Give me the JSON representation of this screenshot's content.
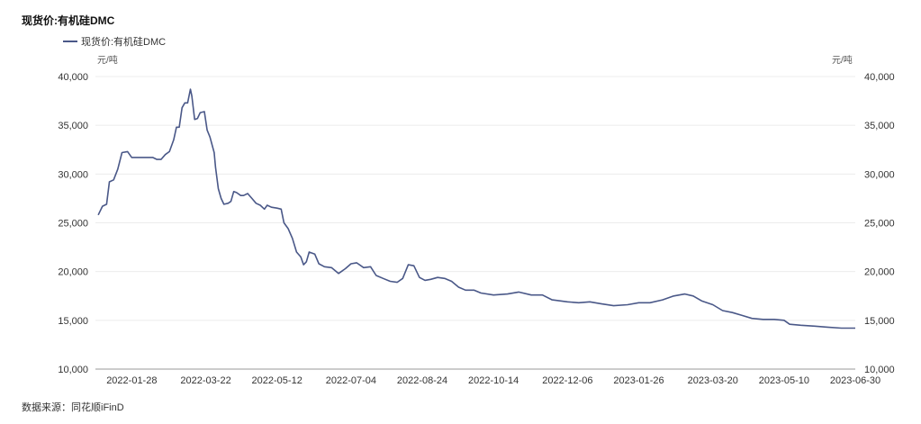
{
  "title": "现货价:有机硅DMC",
  "source": "数据来源：同花顺iFinD",
  "chart_data": {
    "type": "line",
    "title": "现货价:有机硅DMC",
    "ylabel_left": "元/吨",
    "ylabel_right": "元/吨",
    "ylim": [
      10000,
      40000
    ],
    "yticks": [
      "10,000",
      "15,000",
      "20,000",
      "25,000",
      "30,000",
      "35,000",
      "40,000"
    ],
    "xticks": [
      "2022-01-28",
      "2022-03-22",
      "2022-05-12",
      "2022-07-04",
      "2022-08-24",
      "2022-10-14",
      "2022-12-06",
      "2023-01-26",
      "2023-03-20",
      "2023-05-10",
      "2023-06-30"
    ],
    "legend": "top-left",
    "grid": true,
    "color": "#4a5888",
    "series": [
      {
        "name": "现货价:有机硅DMC",
        "points": [
          [
            "2022-01-04",
            25800
          ],
          [
            "2022-01-07",
            26700
          ],
          [
            "2022-01-10",
            26900
          ],
          [
            "2022-01-12",
            29200
          ],
          [
            "2022-01-15",
            29400
          ],
          [
            "2022-01-18",
            30500
          ],
          [
            "2022-01-21",
            32200
          ],
          [
            "2022-01-25",
            32300
          ],
          [
            "2022-01-28",
            31700
          ],
          [
            "2022-02-02",
            31700
          ],
          [
            "2022-02-07",
            31700
          ],
          [
            "2022-02-12",
            31700
          ],
          [
            "2022-02-15",
            31500
          ],
          [
            "2022-02-18",
            31500
          ],
          [
            "2022-02-21",
            32000
          ],
          [
            "2022-02-24",
            32300
          ],
          [
            "2022-02-27",
            33500
          ],
          [
            "2022-03-01",
            34800
          ],
          [
            "2022-03-03",
            34800
          ],
          [
            "2022-03-05",
            36800
          ],
          [
            "2022-03-07",
            37300
          ],
          [
            "2022-03-09",
            37300
          ],
          [
            "2022-03-11",
            38700
          ],
          [
            "2022-03-12",
            38000
          ],
          [
            "2022-03-14",
            35600
          ],
          [
            "2022-03-16",
            35700
          ],
          [
            "2022-03-18",
            36300
          ],
          [
            "2022-03-21",
            36400
          ],
          [
            "2022-03-23",
            34500
          ],
          [
            "2022-03-25",
            33800
          ],
          [
            "2022-03-28",
            32200
          ],
          [
            "2022-03-29",
            30700
          ],
          [
            "2022-03-31",
            28500
          ],
          [
            "2022-04-02",
            27500
          ],
          [
            "2022-04-04",
            26900
          ],
          [
            "2022-04-07",
            27000
          ],
          [
            "2022-04-09",
            27200
          ],
          [
            "2022-04-11",
            28200
          ],
          [
            "2022-04-13",
            28100
          ],
          [
            "2022-04-16",
            27800
          ],
          [
            "2022-04-18",
            27800
          ],
          [
            "2022-04-21",
            28000
          ],
          [
            "2022-04-24",
            27500
          ],
          [
            "2022-04-27",
            27000
          ],
          [
            "2022-04-30",
            26800
          ],
          [
            "2022-05-03",
            26400
          ],
          [
            "2022-05-05",
            26800
          ],
          [
            "2022-05-08",
            26600
          ],
          [
            "2022-05-12",
            26500
          ],
          [
            "2022-05-15",
            26400
          ],
          [
            "2022-05-17",
            25000
          ],
          [
            "2022-05-20",
            24400
          ],
          [
            "2022-05-23",
            23400
          ],
          [
            "2022-05-26",
            22000
          ],
          [
            "2022-05-29",
            21500
          ],
          [
            "2022-05-31",
            20700
          ],
          [
            "2022-06-02",
            21000
          ],
          [
            "2022-06-04",
            22000
          ],
          [
            "2022-06-08",
            21800
          ],
          [
            "2022-06-11",
            20800
          ],
          [
            "2022-06-15",
            20500
          ],
          [
            "2022-06-20",
            20400
          ],
          [
            "2022-06-25",
            19800
          ],
          [
            "2022-06-30",
            20300
          ],
          [
            "2022-07-04",
            20800
          ],
          [
            "2022-07-08",
            20900
          ],
          [
            "2022-07-13",
            20400
          ],
          [
            "2022-07-18",
            20500
          ],
          [
            "2022-07-22",
            19600
          ],
          [
            "2022-07-27",
            19300
          ],
          [
            "2022-08-01",
            19000
          ],
          [
            "2022-08-06",
            18900
          ],
          [
            "2022-08-10",
            19300
          ],
          [
            "2022-08-14",
            20700
          ],
          [
            "2022-08-18",
            20600
          ],
          [
            "2022-08-22",
            19400
          ],
          [
            "2022-08-26",
            19100
          ],
          [
            "2022-08-30",
            19200
          ],
          [
            "2022-09-04",
            19400
          ],
          [
            "2022-09-09",
            19300
          ],
          [
            "2022-09-14",
            19000
          ],
          [
            "2022-09-19",
            18400
          ],
          [
            "2022-09-24",
            18100
          ],
          [
            "2022-09-30",
            18100
          ],
          [
            "2022-10-05",
            17800
          ],
          [
            "2022-10-14",
            17600
          ],
          [
            "2022-10-24",
            17700
          ],
          [
            "2022-11-01",
            17900
          ],
          [
            "2022-11-10",
            17600
          ],
          [
            "2022-11-18",
            17600
          ],
          [
            "2022-11-25",
            17100
          ],
          [
            "2022-12-06",
            16900
          ],
          [
            "2022-12-14",
            16800
          ],
          [
            "2022-12-22",
            16900
          ],
          [
            "2022-12-30",
            16700
          ],
          [
            "2023-01-08",
            16500
          ],
          [
            "2023-01-18",
            16600
          ],
          [
            "2023-01-26",
            16800
          ],
          [
            "2023-02-03",
            16800
          ],
          [
            "2023-02-12",
            17100
          ],
          [
            "2023-02-20",
            17500
          ],
          [
            "2023-02-28",
            17700
          ],
          [
            "2023-03-06",
            17500
          ],
          [
            "2023-03-12",
            17000
          ],
          [
            "2023-03-20",
            16600
          ],
          [
            "2023-03-27",
            16000
          ],
          [
            "2023-04-03",
            15800
          ],
          [
            "2023-04-10",
            15500
          ],
          [
            "2023-04-17",
            15200
          ],
          [
            "2023-04-25",
            15100
          ],
          [
            "2023-05-03",
            15100
          ],
          [
            "2023-05-10",
            15000
          ],
          [
            "2023-05-14",
            14600
          ],
          [
            "2023-05-22",
            14500
          ],
          [
            "2023-06-01",
            14400
          ],
          [
            "2023-06-10",
            14300
          ],
          [
            "2023-06-20",
            14200
          ],
          [
            "2023-06-30",
            14200
          ]
        ]
      }
    ]
  }
}
